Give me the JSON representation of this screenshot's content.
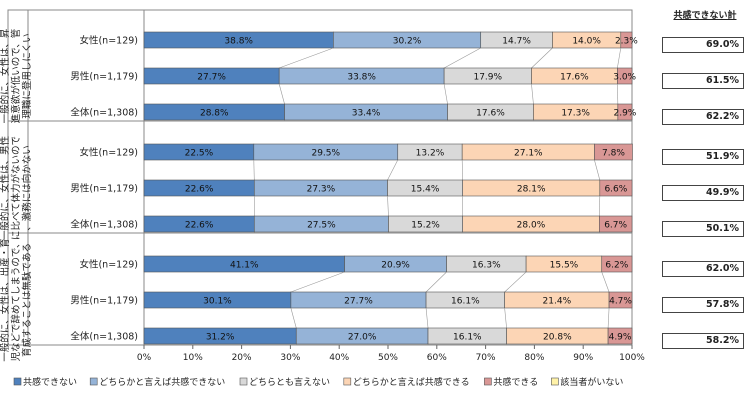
{
  "chart_data": {
    "type": "bar",
    "orientation": "horizontal",
    "stacked": true,
    "percent": true,
    "xlim": [
      0,
      100
    ],
    "x_ticks": [
      "0%",
      "10%",
      "20%",
      "30%",
      "40%",
      "50%",
      "60%",
      "70%",
      "80%",
      "90%",
      "100%"
    ],
    "groups": [
      {
        "label": "一般的に、女性は、昇進意欲が低いので、管理職に登用しにくい",
        "rows": [
          {
            "label": "女性(n=129)",
            "values": [
              38.8,
              30.2,
              14.7,
              14.0,
              2.3,
              0.0
            ]
          },
          {
            "label": "男性(n=1,179)",
            "values": [
              27.7,
              33.8,
              17.9,
              17.6,
              3.0,
              0.0
            ]
          },
          {
            "label": "全体(n=1,308)",
            "values": [
              28.8,
              33.4,
              17.6,
              17.3,
              2.9,
              0.0
            ]
          }
        ]
      },
      {
        "label": "一般的に、女性は、男性に比べて体力がないので、激務には向かない",
        "rows": [
          {
            "label": "女性(n=129)",
            "values": [
              22.5,
              29.5,
              13.2,
              27.1,
              7.8,
              0.0
            ]
          },
          {
            "label": "男性(n=1,179)",
            "values": [
              22.6,
              27.3,
              15.4,
              28.1,
              6.6,
              0.0
            ]
          },
          {
            "label": "全体(n=1,308)",
            "values": [
              22.6,
              27.5,
              15.2,
              28.0,
              6.7,
              0.0
            ]
          }
        ]
      },
      {
        "label": "一般的に、女性は、出産・育児などで辞めてしまうので、育成することは無駄である",
        "rows": [
          {
            "label": "女性(n=129)",
            "values": [
              41.1,
              20.9,
              16.3,
              15.5,
              6.2,
              0.0
            ]
          },
          {
            "label": "男性(n=1,179)",
            "values": [
              30.1,
              27.7,
              16.1,
              21.4,
              4.7,
              0.0
            ]
          },
          {
            "label": "全体(n=1,308)",
            "values": [
              31.2,
              27.0,
              16.1,
              20.8,
              4.9,
              0.0
            ]
          }
        ]
      }
    ],
    "series": [
      {
        "name": "共感できない",
        "color": "#4f81bd"
      },
      {
        "name": "どちらかと言えば共感できない",
        "color": "#95b3d7"
      },
      {
        "name": "どちらとも言えない",
        "color": "#d9d9d9"
      },
      {
        "name": "どちらかと言えば共感できる",
        "color": "#fcd5b5"
      },
      {
        "name": "共感できる",
        "color": "#d99795"
      },
      {
        "name": "該当者がいない",
        "color": "#fff2a8"
      }
    ],
    "side_title": "共感できない計",
    "side_totals": [
      "69.0%",
      "61.5%",
      "62.2%",
      "51.9%",
      "49.9%",
      "50.1%",
      "62.0%",
      "57.8%",
      "58.2%"
    ],
    "legend_position": "bottom"
  }
}
